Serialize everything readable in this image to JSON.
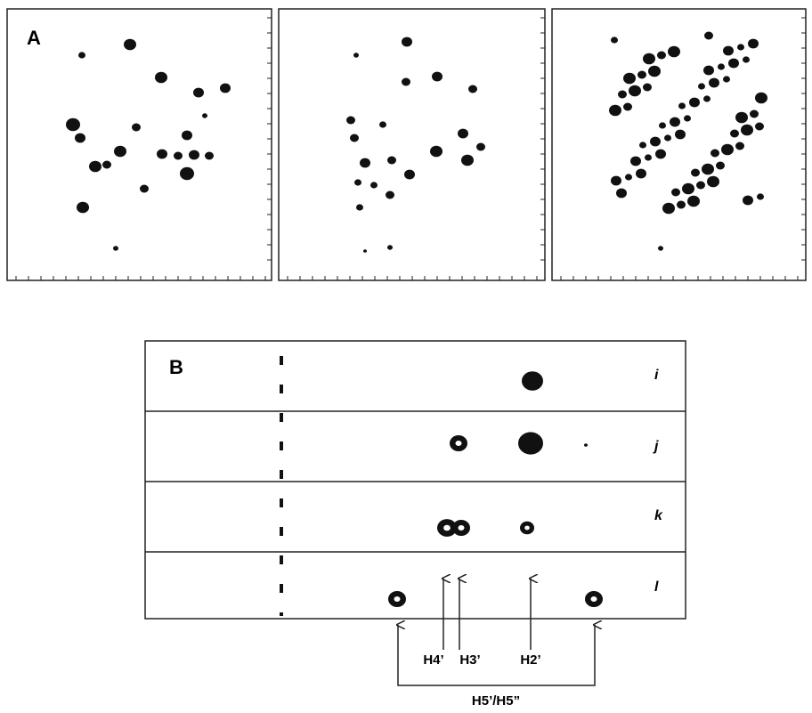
{
  "panel_a": {
    "label": "A"
  },
  "panel_b": {
    "label": "B",
    "rows": [
      "i",
      "j",
      "k",
      "l"
    ],
    "peaks": [
      "H4’",
      "H3’",
      "H2’",
      "H5’/H5”"
    ]
  }
}
